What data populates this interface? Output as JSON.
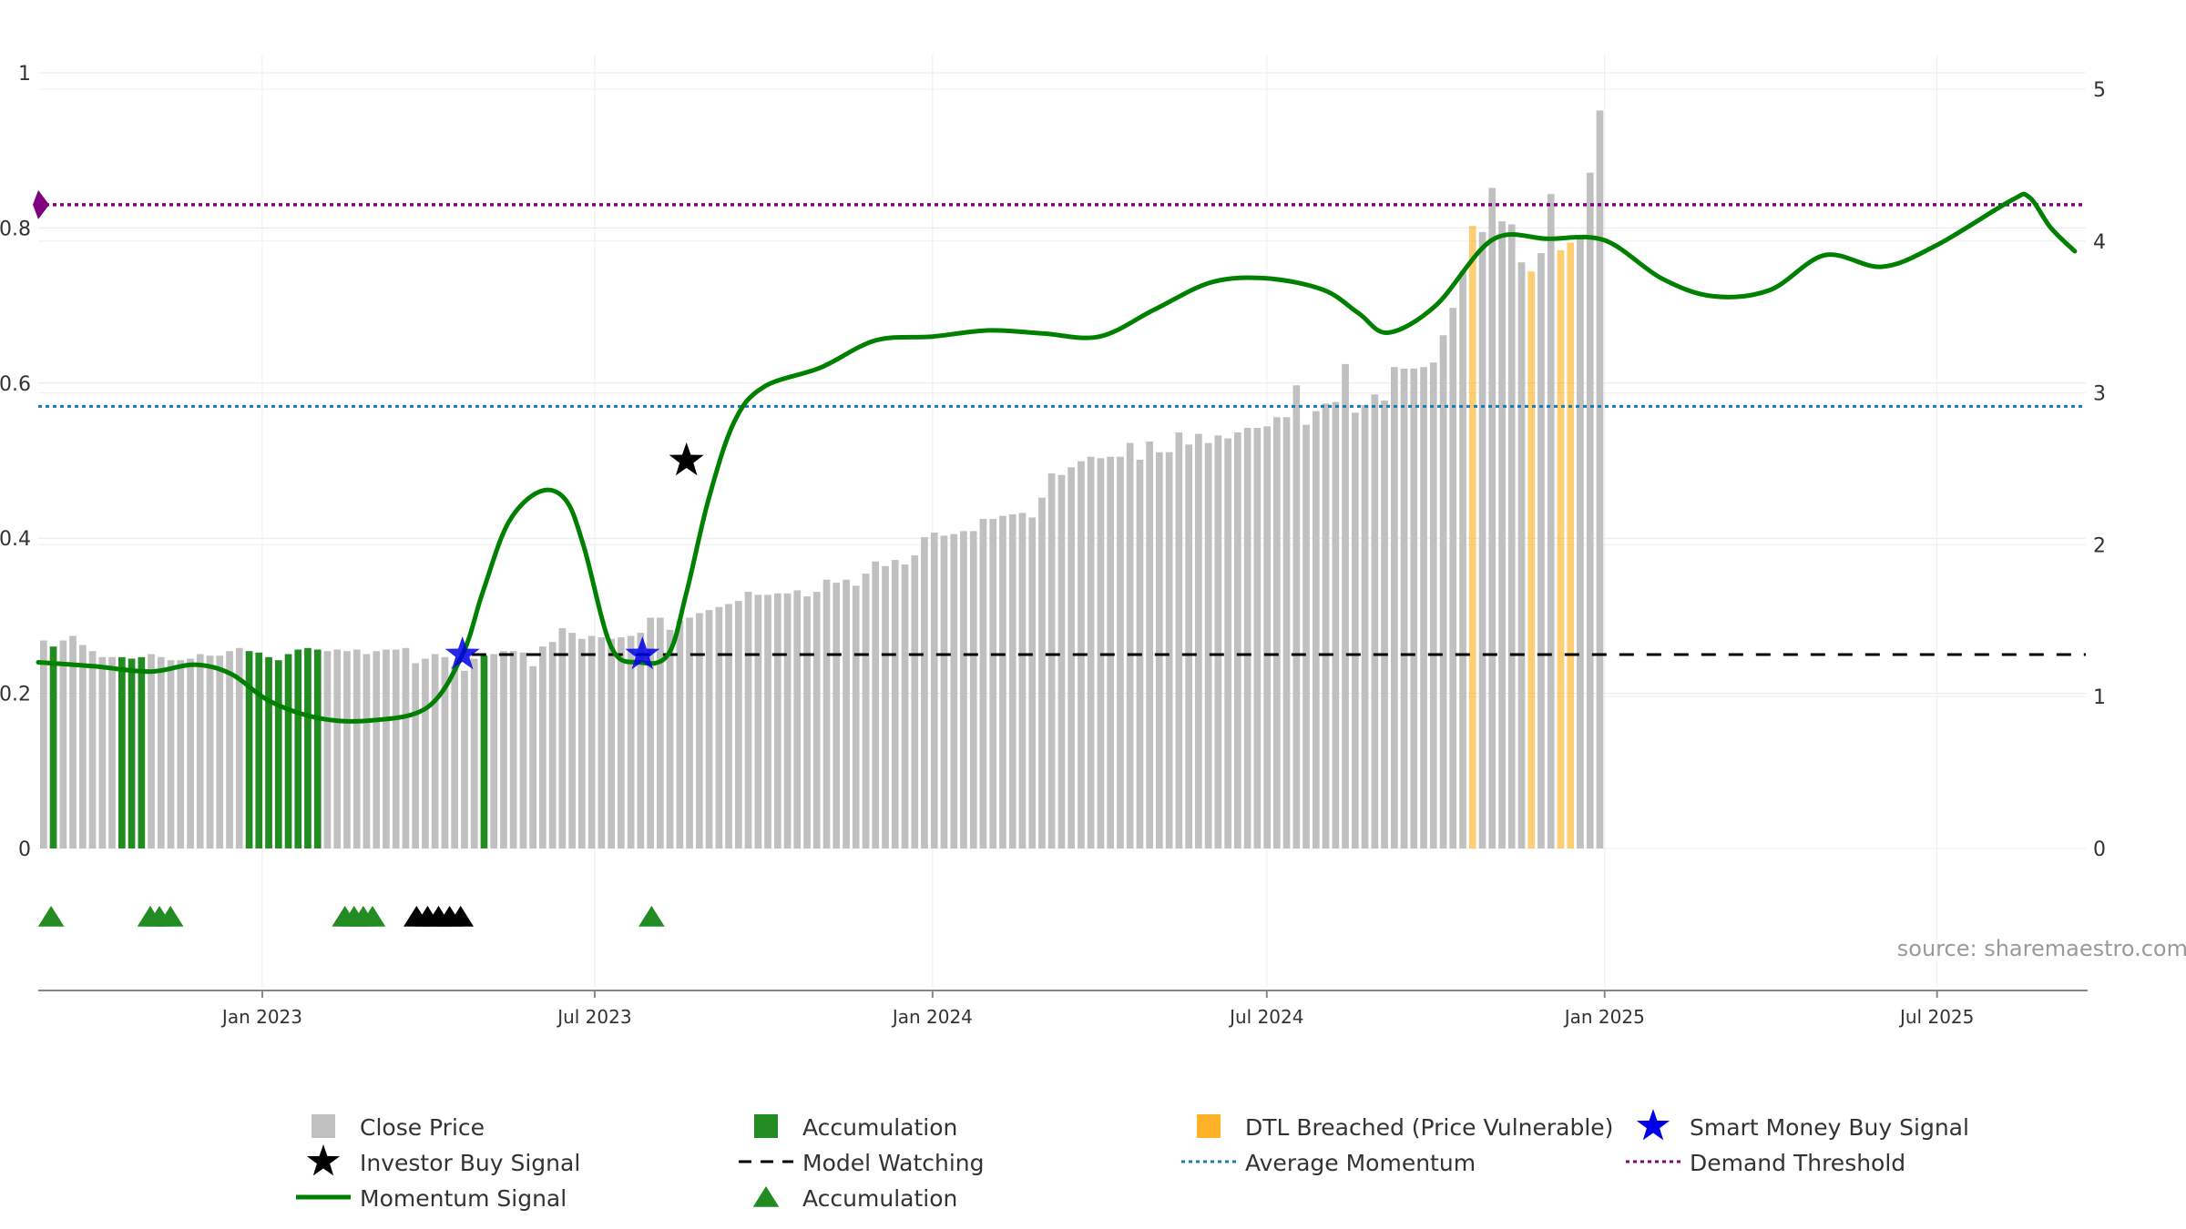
{
  "chart_data": {
    "type": "bar",
    "source": "source: sharemaestro.com",
    "left_axis": {
      "range": [
        0,
        1
      ],
      "ticks": [
        {
          "value": 0,
          "label": "0"
        },
        {
          "value": 0.2,
          "label": "0.2"
        },
        {
          "value": 0.4,
          "label": "0.4"
        },
        {
          "value": 0.6,
          "label": "0.6"
        },
        {
          "value": 0.8,
          "label": "0.8"
        },
        {
          "value": 1,
          "label": "1"
        }
      ]
    },
    "right_axis": {
      "range": [
        0,
        5
      ],
      "ticks": [
        {
          "value": 0,
          "label": "0"
        },
        {
          "value": 1,
          "label": "1"
        },
        {
          "value": 2,
          "label": "2"
        },
        {
          "value": 3,
          "label": "3"
        },
        {
          "value": 4,
          "label": "4"
        },
        {
          "value": 5,
          "label": "5"
        }
      ]
    },
    "x_axis": {
      "start": "2022-09-01",
      "end": "2025-09-20",
      "ticks": [
        {
          "date": "2023-01-01",
          "label": "Jan 2023"
        },
        {
          "date": "2023-07-01",
          "label": "Jul 2023"
        },
        {
          "date": "2024-01-01",
          "label": "Jan 2024"
        },
        {
          "date": "2024-07-01",
          "label": "Jul 2024"
        },
        {
          "date": "2025-01-01",
          "label": "Jan 2025"
        },
        {
          "date": "2025-07-01",
          "label": "Jul 2025"
        }
      ]
    },
    "close_price": {
      "name": "Close Price",
      "unit": "right-axis",
      "bar_interval_days": 5.33,
      "values": [
        1.37,
        1.33,
        1.37,
        1.4,
        1.34,
        1.3,
        1.26,
        1.26,
        1.26,
        1.25,
        1.26,
        1.28,
        1.26,
        1.24,
        1.24,
        1.25,
        1.28,
        1.27,
        1.27,
        1.3,
        1.32,
        1.3,
        1.29,
        1.26,
        1.24,
        1.28,
        1.31,
        1.32,
        1.31,
        1.3,
        1.31,
        1.3,
        1.31,
        1.28,
        1.3,
        1.31,
        1.31,
        1.32,
        1.22,
        1.25,
        1.28,
        1.26,
        1.2,
        1.17,
        1.25,
        1.27,
        1.28,
        1.3,
        1.3,
        1.29,
        1.2,
        1.33,
        1.36,
        1.45,
        1.42,
        1.38,
        1.4,
        1.39,
        1.38,
        1.39,
        1.4,
        1.42,
        1.52,
        1.52,
        1.44,
        1.5,
        1.52,
        1.55,
        1.57,
        1.59,
        1.61,
        1.63,
        1.69,
        1.67,
        1.67,
        1.68,
        1.68,
        1.7,
        1.66,
        1.69,
        1.77,
        1.75,
        1.77,
        1.73,
        1.81,
        1.89,
        1.86,
        1.9,
        1.87,
        1.93,
        2.05,
        2.08,
        2.06,
        2.07,
        2.09,
        2.09,
        2.17,
        2.17,
        2.19,
        2.2,
        2.21,
        2.18,
        2.31,
        2.47,
        2.46,
        2.51,
        2.55,
        2.58,
        2.57,
        2.58,
        2.58,
        2.67,
        2.56,
        2.68,
        2.61,
        2.61,
        2.74,
        2.66,
        2.73,
        2.67,
        2.72,
        2.7,
        2.74,
        2.77,
        2.77,
        2.78,
        2.84,
        2.84,
        3.05,
        2.79,
        2.88,
        2.93,
        2.94,
        3.19,
        2.87,
        2.92,
        2.99,
        2.95,
        3.17,
        3.16,
        3.16,
        3.17,
        3.2,
        3.38,
        3.56,
        3.8,
        4.1,
        4.06,
        4.35,
        4.13,
        4.11,
        3.86,
        3.8,
        3.92,
        4.31,
        3.94,
        3.99,
        4.02,
        4.45,
        4.86
      ],
      "accumulation_bar_indices": [
        1,
        8,
        9,
        10,
        21,
        22,
        23,
        24,
        25,
        26,
        27,
        28,
        45
      ],
      "dtl_breached_bar_indices": [
        146,
        152,
        155,
        156
      ]
    },
    "momentum_signal": {
      "name": "Momentum Signal",
      "unit": "left-axis",
      "x": [
        "2022-09-01",
        "2022-10-01",
        "2022-11-01",
        "2022-11-25",
        "2022-12-15",
        "2023-01-05",
        "2023-02-01",
        "2023-03-01",
        "2023-04-01",
        "2023-04-20",
        "2023-05-01",
        "2023-05-15",
        "2023-06-01",
        "2023-06-15",
        "2023-06-25",
        "2023-07-10",
        "2023-07-25",
        "2023-08-10",
        "2023-08-20",
        "2023-09-01",
        "2023-09-15",
        "2023-10-01",
        "2023-11-01",
        "2023-12-01",
        "2024-01-01",
        "2024-02-01",
        "2024-03-01",
        "2024-04-01",
        "2024-05-01",
        "2024-06-01",
        "2024-07-01",
        "2024-08-01",
        "2024-08-20",
        "2024-09-05",
        "2024-10-01",
        "2024-11-01",
        "2024-12-01",
        "2025-01-01",
        "2025-02-01",
        "2025-03-01",
        "2025-04-01",
        "2025-05-01",
        "2025-06-01",
        "2025-07-01",
        "2025-08-10",
        "2025-08-20",
        "2025-09-01",
        "2025-09-14"
      ],
      "values": [
        0.24,
        0.235,
        0.228,
        0.237,
        0.225,
        0.19,
        0.168,
        0.165,
        0.182,
        0.25,
        0.33,
        0.42,
        0.46,
        0.45,
        0.39,
        0.26,
        0.24,
        0.25,
        0.33,
        0.45,
        0.55,
        0.595,
        0.62,
        0.655,
        0.66,
        0.668,
        0.664,
        0.66,
        0.695,
        0.73,
        0.735,
        0.72,
        0.69,
        0.665,
        0.7,
        0.785,
        0.786,
        0.784,
        0.735,
        0.712,
        0.72,
        0.765,
        0.75,
        0.778,
        0.835,
        0.84,
        0.8,
        0.77
      ]
    },
    "model_watching": {
      "name": "Model Watching",
      "value": 0.25,
      "from": "2023-04-25"
    },
    "average_momentum": {
      "name": "Average Momentum",
      "value": 0.57
    },
    "demand_threshold": {
      "name": "Demand Threshold",
      "value": 0.83
    },
    "investor_buy_signals": [
      {
        "date": "2023-08-20",
        "value": 0.5
      }
    ],
    "smart_money_buy_signals": [
      {
        "date": "2023-04-20",
        "value": 0.25
      },
      {
        "date": "2023-07-27",
        "value": 0.25
      }
    ],
    "accumulation_markers": [
      "2022-09-08",
      "2022-11-01",
      "2022-11-06",
      "2022-11-12",
      "2023-02-15",
      "2023-02-20",
      "2023-02-25",
      "2023-03-02"
    ],
    "black_triangle_markers": [
      "2023-03-26",
      "2023-04-01",
      "2023-04-07",
      "2023-04-13",
      "2023-04-19"
    ],
    "accumulation_markers_2": [
      "2023-08-01"
    ],
    "colors": {
      "close_price": "#c0c0c0",
      "accumulation": "#228b22",
      "dtl": "#ffa500",
      "momentum": "#008000",
      "model_watching": "#000000",
      "average_momentum": "#1f77b4",
      "demand_threshold": "#800080",
      "smart_money": "#0000e6",
      "investor": "#000000"
    },
    "legend": [
      {
        "key": "close_price",
        "label": "Close Price"
      },
      {
        "key": "investor_buy",
        "label": "Investor Buy Signal"
      },
      {
        "key": "momentum",
        "label": "Momentum Signal"
      },
      {
        "key": "accumulation_bar",
        "label": "Accumulation"
      },
      {
        "key": "model_watching",
        "label": "Model Watching"
      },
      {
        "key": "accumulation_marker",
        "label": "Accumulation"
      },
      {
        "key": "dtl",
        "label": "DTL Breached (Price Vulnerable)"
      },
      {
        "key": "average_momentum",
        "label": "Average Momentum"
      },
      {
        "key": "smart_money",
        "label": "Smart Money Buy Signal"
      },
      {
        "key": "demand_threshold",
        "label": "Demand Threshold"
      }
    ]
  }
}
